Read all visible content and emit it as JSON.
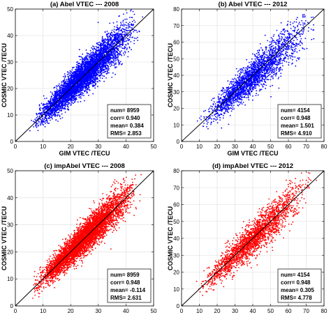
{
  "chart_data": [
    {
      "type": "scatter",
      "title": "(a) Abel VTEC --- 2008",
      "xlabel": "GIM VTEC /TECU",
      "ylabel": "COSMIC VTEC /TECU",
      "xlim": [
        0,
        50
      ],
      "ylim": [
        0,
        50
      ],
      "xticks": [
        "0",
        "10",
        "20",
        "30",
        "40",
        "50"
      ],
      "yticks": [
        "0",
        "10",
        "20",
        "30",
        "40",
        "50"
      ],
      "color": "#0000ff",
      "reference_line": "y = x",
      "grid": true,
      "stats": [
        "num= 8959",
        "corr= 0.940",
        "mean= 0.384",
        "RMS= 2.853"
      ],
      "legend_position": "bottom-right",
      "point_cloud": {
        "count": 8959,
        "x_range": [
          5,
          46
        ],
        "center_ratio": 1.0,
        "spread": 2.853
      }
    },
    {
      "type": "scatter",
      "title": "(b) Abel VTEC --- 2012",
      "xlabel": "GIM VTEC /TECU",
      "ylabel": "COSMIC VTEC /TECU",
      "xlim": [
        0,
        80
      ],
      "ylim": [
        0,
        80
      ],
      "xticks": [
        "0",
        "10",
        "20",
        "30",
        "40",
        "50",
        "60",
        "70",
        "80"
      ],
      "yticks": [
        "0",
        "10",
        "20",
        "30",
        "40",
        "50",
        "60",
        "70",
        "80"
      ],
      "color": "#0000ff",
      "reference_line": "y = x",
      "grid": true,
      "stats": [
        "num= 4154",
        "corr= 0.948",
        "mean= 1.501",
        "RMS= 4.910"
      ],
      "legend_position": "bottom-right",
      "point_cloud": {
        "count": 4154,
        "x_range": [
          8,
          76
        ],
        "center_ratio": 0.98,
        "spread": 4.91
      }
    },
    {
      "type": "scatter",
      "title": "(c) impAbel VTEC --- 2008",
      "xlabel": "GIM VTEC /TECU",
      "ylabel": "COSMIC VTEC /TECU",
      "xlim": [
        0,
        50
      ],
      "ylim": [
        0,
        50
      ],
      "xticks": [
        "0",
        "10",
        "20",
        "30",
        "40",
        "50"
      ],
      "yticks": [
        "0",
        "10",
        "20",
        "30",
        "40",
        "50"
      ],
      "color": "#ff0000",
      "reference_line": "y = x",
      "grid": true,
      "stats": [
        "num= 8959",
        "corr= 0.948",
        "mean= -0.114",
        "RMS= 2.631"
      ],
      "legend_position": "bottom-right",
      "point_cloud": {
        "count": 8959,
        "x_range": [
          5,
          46
        ],
        "center_ratio": 1.0,
        "spread": 2.631
      }
    },
    {
      "type": "scatter",
      "title": "(d) impAbel VTEC --- 2012",
      "xlabel": "GIM VTEC /TECU",
      "ylabel": "COSMIC VTEC /TECU",
      "xlim": [
        0,
        80
      ],
      "ylim": [
        0,
        80
      ],
      "xticks": [
        "0",
        "10",
        "20",
        "30",
        "40",
        "50",
        "60",
        "70",
        "80"
      ],
      "yticks": [
        "0",
        "10",
        "20",
        "30",
        "40",
        "50",
        "60",
        "70",
        "80"
      ],
      "color": "#ff0000",
      "reference_line": "y = x",
      "grid": true,
      "stats": [
        "num= 4154",
        "corr= 0.948",
        "mean= 0.305",
        "RMS= 4.778"
      ],
      "legend_position": "bottom-right",
      "point_cloud": {
        "count": 4154,
        "x_range": [
          8,
          76
        ],
        "center_ratio": 1.0,
        "spread": 4.778
      }
    }
  ]
}
